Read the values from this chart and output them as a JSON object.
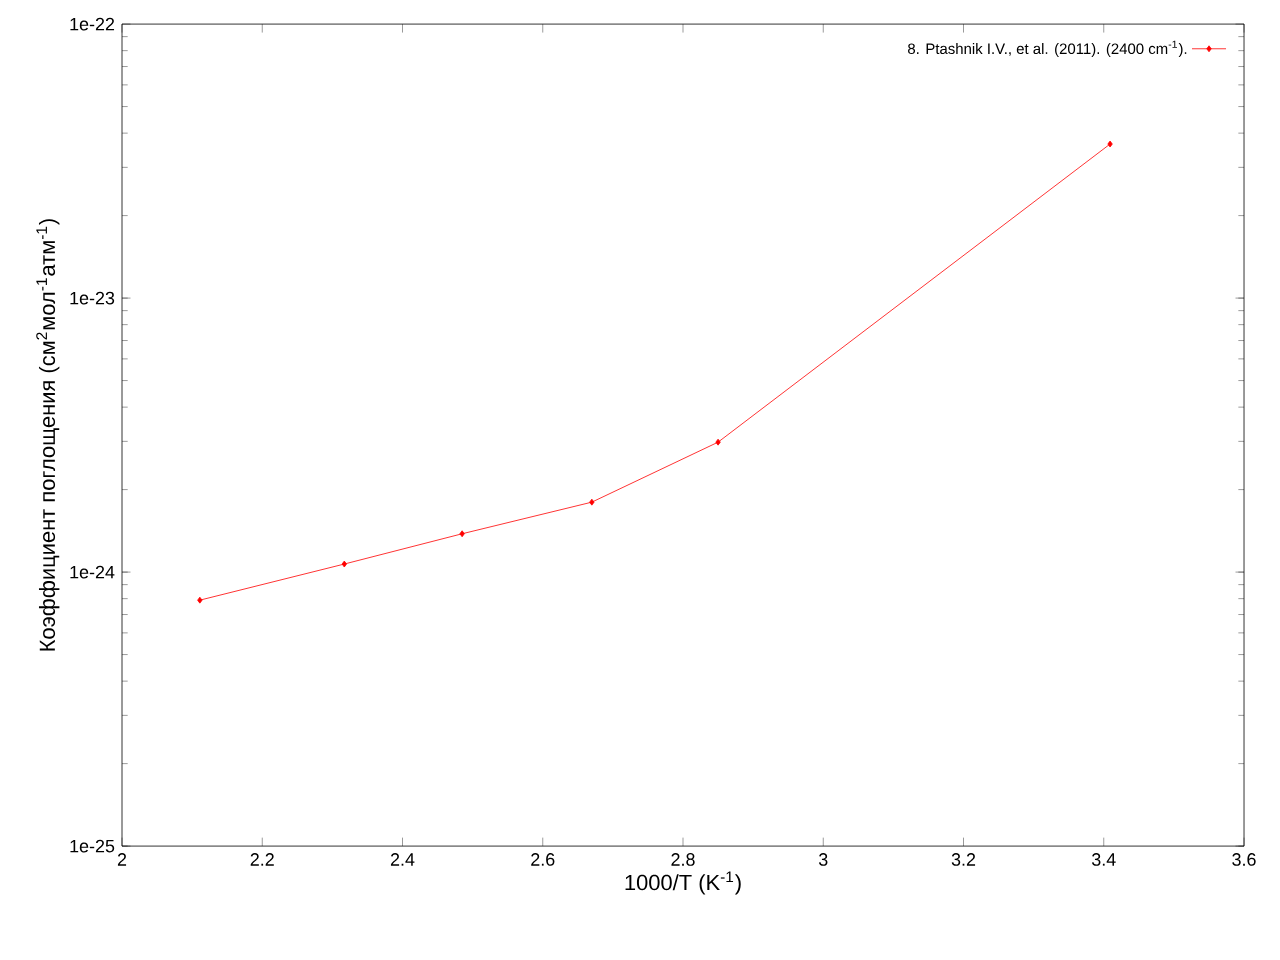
{
  "chart_data": {
    "type": "line",
    "xlabel": "1000/T (K$^{-1}$)",
    "ylabel": "Коэффициент поглощения (см$^{2}$мол$^{-1}$атм$^{-1}$)",
    "x": [
      2.111,
      2.317,
      2.485,
      2.67,
      2.85,
      3.409
    ],
    "series": [
      {
        "name": "8. Ptashnik I.V., et al. (2011). (2400 cm$^{-1}$).",
        "color": "#ff0000",
        "values": [
          7.9e-25,
          1.07e-24,
          1.38e-24,
          1.8e-24,
          2.98e-24,
          3.65e-23
        ]
      }
    ],
    "xlim": [
      2,
      3.6
    ],
    "xticks": [
      2,
      2.2,
      2.4,
      2.6,
      2.8,
      3,
      3.2,
      3.4,
      3.6
    ],
    "ylim": [
      1e-25,
      1e-22
    ],
    "yticks": [
      {
        "value": 1e-25,
        "label": "1e-25"
      },
      {
        "value": 1e-24,
        "label": "1e-24"
      },
      {
        "value": 1e-23,
        "label": "1e-23"
      },
      {
        "value": 1e-22,
        "label": "1e-22"
      }
    ],
    "log": "y",
    "grid": false,
    "legend": "top right",
    "marker": "diamond",
    "line_style": "solid"
  }
}
